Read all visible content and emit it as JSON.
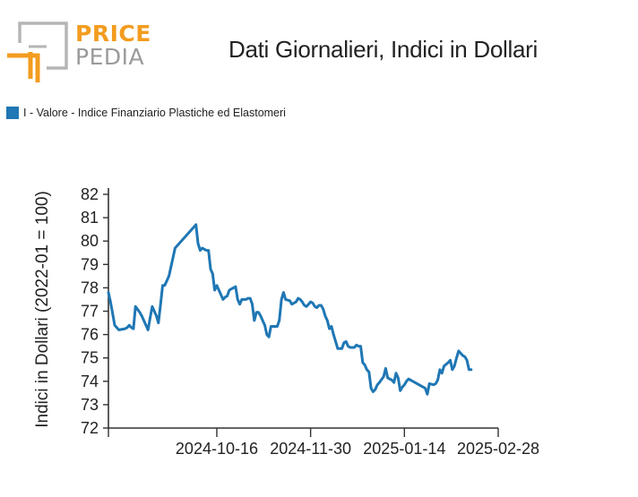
{
  "logo": {
    "word1": "PRICE",
    "word2": "PEDIA",
    "accent_color": "#f39c1f",
    "grey_color": "#9a9a9a"
  },
  "title": "Dati Giornalieri, Indici in Dollari",
  "legend": {
    "label": "I - Valore - Indice Finanziario Plastiche ed Elastomeri",
    "color": "#1f77b4"
  },
  "chart_data": {
    "type": "line",
    "title": "Dati Giornalieri, Indici in Dollari",
    "xlabel": "",
    "ylabel": "Indici in Dollari (2022-01 = 100)",
    "ylim": [
      72,
      82
    ],
    "yticks": [
      72,
      73,
      74,
      75,
      76,
      77,
      78,
      79,
      80,
      81,
      82
    ],
    "xlim": [
      "2024-08-25",
      "2025-02-28"
    ],
    "xticks": [
      "2024-10-16",
      "2024-11-30",
      "2025-01-14",
      "2025-02-28"
    ],
    "grid": false,
    "legend_position": "top-left",
    "series": [
      {
        "name": "I - Valore - Indice Finanziario Plastiche ed Elastomeri",
        "color": "#1f77b4",
        "points": [
          [
            "2024-08-25",
            77.8
          ],
          [
            "2024-08-26",
            77.4
          ],
          [
            "2024-08-27",
            76.9
          ],
          [
            "2024-08-28",
            76.4
          ],
          [
            "2024-08-29",
            76.3
          ],
          [
            "2024-08-30",
            76.2
          ],
          [
            "2024-09-02",
            76.25
          ],
          [
            "2024-09-03",
            76.3
          ],
          [
            "2024-09-04",
            76.4
          ],
          [
            "2024-09-05",
            76.3
          ],
          [
            "2024-09-06",
            76.25
          ],
          [
            "2024-09-07",
            77.2
          ],
          [
            "2024-09-09",
            76.95
          ],
          [
            "2024-09-10",
            76.8
          ],
          [
            "2024-09-11",
            76.6
          ],
          [
            "2024-09-12",
            76.4
          ],
          [
            "2024-09-13",
            76.2
          ],
          [
            "2024-09-14",
            76.7
          ],
          [
            "2024-09-15",
            77.2
          ],
          [
            "2024-09-16",
            77.0
          ],
          [
            "2024-09-17",
            76.8
          ],
          [
            "2024-09-18",
            76.5
          ],
          [
            "2024-09-19",
            77.3
          ],
          [
            "2024-09-20",
            78.1
          ],
          [
            "2024-09-21",
            78.1
          ],
          [
            "2024-09-23",
            78.5
          ],
          [
            "2024-09-25",
            79.3
          ],
          [
            "2024-09-26",
            79.7
          ],
          [
            "2024-10-06",
            80.7
          ],
          [
            "2024-10-07",
            79.9
          ],
          [
            "2024-10-08",
            79.6
          ],
          [
            "2024-10-09",
            79.7
          ],
          [
            "2024-10-10",
            79.65
          ],
          [
            "2024-10-11",
            79.6
          ],
          [
            "2024-10-12",
            79.6
          ],
          [
            "2024-10-13",
            78.8
          ],
          [
            "2024-10-14",
            78.6
          ],
          [
            "2024-10-15",
            77.9
          ],
          [
            "2024-10-16",
            78.1
          ],
          [
            "2024-10-17",
            77.9
          ],
          [
            "2024-10-18",
            77.7
          ],
          [
            "2024-10-19",
            77.5
          ],
          [
            "2024-10-20",
            77.6
          ],
          [
            "2024-10-21",
            77.65
          ],
          [
            "2024-10-22",
            77.9
          ],
          [
            "2024-10-23",
            77.95
          ],
          [
            "2024-10-24",
            78.0
          ],
          [
            "2024-10-25",
            78.05
          ],
          [
            "2024-10-26",
            77.5
          ],
          [
            "2024-10-27",
            77.3
          ],
          [
            "2024-10-28",
            77.5
          ],
          [
            "2024-10-30",
            77.5
          ],
          [
            "2024-10-31",
            77.55
          ],
          [
            "2024-11-01",
            77.55
          ],
          [
            "2024-11-02",
            77.3
          ],
          [
            "2024-11-03",
            76.6
          ],
          [
            "2024-11-04",
            76.95
          ],
          [
            "2024-11-05",
            76.95
          ],
          [
            "2024-11-06",
            76.8
          ],
          [
            "2024-11-07",
            76.6
          ],
          [
            "2024-11-08",
            76.4
          ],
          [
            "2024-11-09",
            76.0
          ],
          [
            "2024-11-10",
            75.9
          ],
          [
            "2024-11-11",
            76.35
          ],
          [
            "2024-11-12",
            76.35
          ],
          [
            "2024-11-13",
            76.35
          ],
          [
            "2024-11-14",
            76.35
          ],
          [
            "2024-11-15",
            76.6
          ],
          [
            "2024-11-16",
            77.5
          ],
          [
            "2024-11-17",
            77.8
          ],
          [
            "2024-11-18",
            77.5
          ],
          [
            "2024-11-20",
            77.45
          ],
          [
            "2024-11-21",
            77.3
          ],
          [
            "2024-11-22",
            77.35
          ],
          [
            "2024-11-23",
            77.4
          ],
          [
            "2024-11-24",
            77.55
          ],
          [
            "2024-11-25",
            77.5
          ],
          [
            "2024-11-26",
            77.4
          ],
          [
            "2024-11-27",
            77.25
          ],
          [
            "2024-11-28",
            77.2
          ],
          [
            "2024-11-29",
            77.3
          ],
          [
            "2024-11-30",
            77.4
          ],
          [
            "2024-12-01",
            77.35
          ],
          [
            "2024-12-02",
            77.2
          ],
          [
            "2024-12-03",
            77.15
          ],
          [
            "2024-12-04",
            77.25
          ],
          [
            "2024-12-05",
            77.25
          ],
          [
            "2024-12-06",
            77.1
          ],
          [
            "2024-12-07",
            76.8
          ],
          [
            "2024-12-08",
            76.6
          ],
          [
            "2024-12-09",
            76.25
          ],
          [
            "2024-12-10",
            76.35
          ],
          [
            "2024-12-11",
            76.0
          ],
          [
            "2024-12-12",
            75.7
          ],
          [
            "2024-12-13",
            75.4
          ],
          [
            "2024-12-14",
            75.4
          ],
          [
            "2024-12-15",
            75.4
          ],
          [
            "2024-12-16",
            75.65
          ],
          [
            "2024-12-17",
            75.7
          ],
          [
            "2024-12-18",
            75.5
          ],
          [
            "2024-12-19",
            75.45
          ],
          [
            "2024-12-20",
            75.45
          ],
          [
            "2024-12-21",
            75.45
          ],
          [
            "2024-12-22",
            75.55
          ],
          [
            "2024-12-23",
            75.5
          ],
          [
            "2024-12-24",
            75.5
          ],
          [
            "2024-12-25",
            74.8
          ],
          [
            "2024-12-26",
            74.7
          ],
          [
            "2024-12-27",
            74.5
          ],
          [
            "2024-12-28",
            74.4
          ],
          [
            "2024-12-29",
            73.7
          ],
          [
            "2024-12-30",
            73.55
          ],
          [
            "2024-12-31",
            73.65
          ],
          [
            "2025-01-01",
            73.85
          ],
          [
            "2025-01-02",
            73.95
          ],
          [
            "2025-01-04",
            74.2
          ],
          [
            "2025-01-05",
            74.55
          ],
          [
            "2025-01-06",
            74.15
          ],
          [
            "2025-01-08",
            74.05
          ],
          [
            "2025-01-09",
            73.95
          ],
          [
            "2025-01-10",
            74.35
          ],
          [
            "2025-01-11",
            74.15
          ],
          [
            "2025-01-12",
            73.6
          ],
          [
            "2025-01-13",
            73.75
          ],
          [
            "2025-01-14",
            73.85
          ],
          [
            "2025-01-15",
            74.0
          ],
          [
            "2025-01-16",
            74.1
          ],
          [
            "2025-01-24",
            73.7
          ],
          [
            "2025-01-25",
            73.45
          ],
          [
            "2025-01-26",
            73.9
          ],
          [
            "2025-01-28",
            73.85
          ],
          [
            "2025-01-29",
            73.9
          ],
          [
            "2025-01-30",
            74.05
          ],
          [
            "2025-01-31",
            74.5
          ],
          [
            "2025-02-01",
            74.35
          ],
          [
            "2025-02-02",
            74.65
          ],
          [
            "2025-02-04",
            74.8
          ],
          [
            "2025-02-05",
            74.9
          ],
          [
            "2025-02-06",
            74.5
          ],
          [
            "2025-02-07",
            74.65
          ],
          [
            "2025-02-08",
            75.0
          ],
          [
            "2025-02-09",
            75.3
          ],
          [
            "2025-02-11",
            75.1
          ],
          [
            "2025-02-12",
            75.05
          ],
          [
            "2025-02-13",
            74.9
          ],
          [
            "2025-02-14",
            74.5
          ],
          [
            "2025-02-15",
            74.5
          ]
        ]
      }
    ]
  }
}
